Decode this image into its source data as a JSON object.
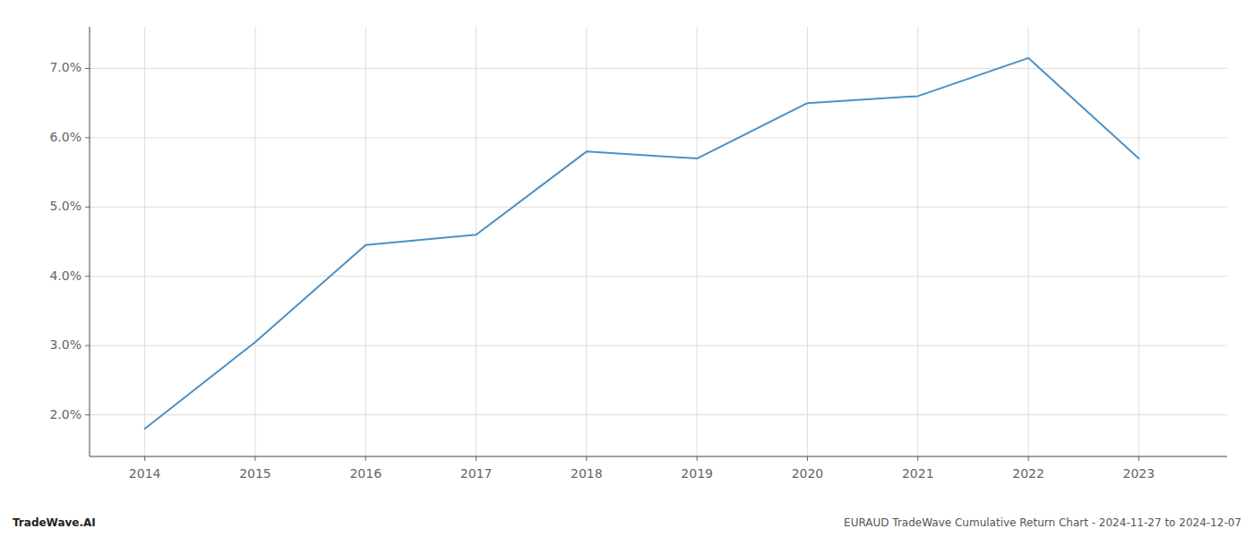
{
  "chart_data": {
    "type": "line",
    "x": [
      2014,
      2015,
      2016,
      2017,
      2018,
      2019,
      2020,
      2021,
      2022,
      2023
    ],
    "values": [
      0.018,
      0.0305,
      0.0445,
      0.046,
      0.058,
      0.057,
      0.065,
      0.066,
      0.0715,
      0.057
    ],
    "color": "#4a90c4",
    "xlim": [
      2013.5,
      2023.8
    ],
    "ylim": [
      0.014,
      0.076
    ],
    "xticks": [
      2014,
      2015,
      2016,
      2017,
      2018,
      2019,
      2020,
      2021,
      2022,
      2023
    ],
    "yticks": [
      {
        "value": 0.02,
        "label": "2.0%"
      },
      {
        "value": 0.03,
        "label": "3.0%"
      },
      {
        "value": 0.04,
        "label": "4.0%"
      },
      {
        "value": 0.05,
        "label": "5.0%"
      },
      {
        "value": 0.06,
        "label": "6.0%"
      },
      {
        "value": 0.07,
        "label": "7.0%"
      }
    ],
    "grid": true,
    "annotations": [
      "TradeWave.AI",
      "EURAUD TradeWave Cumulative Return Chart - 2024-11-27 to 2024-12-07"
    ]
  }
}
